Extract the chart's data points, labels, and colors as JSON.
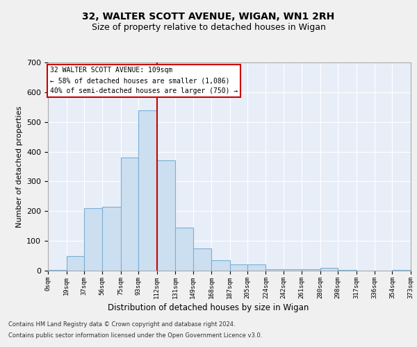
{
  "title_line1": "32, WALTER SCOTT AVENUE, WIGAN, WN1 2RH",
  "title_line2": "Size of property relative to detached houses in Wigan",
  "xlabel": "Distribution of detached houses by size in Wigan",
  "ylabel": "Number of detached properties",
  "property_label": "32 WALTER SCOTT AVENUE: 109sqm",
  "annotation_line2": "← 58% of detached houses are smaller (1,086)",
  "annotation_line3": "40% of semi-detached houses are larger (750) →",
  "footer_line1": "Contains HM Land Registry data © Crown copyright and database right 2024.",
  "footer_line2": "Contains public sector information licensed under the Open Government Licence v3.0.",
  "bin_edges": [
    0,
    19,
    37,
    56,
    75,
    93,
    112,
    131,
    149,
    168,
    187,
    205,
    224,
    242,
    261,
    280,
    298,
    317,
    336,
    354,
    373
  ],
  "bin_counts": [
    3,
    50,
    210,
    215,
    380,
    540,
    370,
    145,
    75,
    35,
    22,
    20,
    5,
    5,
    5,
    10,
    3,
    1,
    0,
    3
  ],
  "bar_color": "#ccdff0",
  "bar_edge_color": "#7bafd4",
  "vline_color": "#cc0000",
  "vline_x": 112,
  "box_color": "#cc0000",
  "ylim": [
    0,
    700
  ],
  "yticks": [
    0,
    100,
    200,
    300,
    400,
    500,
    600,
    700
  ],
  "tick_labels": [
    "0sqm",
    "19sqm",
    "37sqm",
    "56sqm",
    "75sqm",
    "93sqm",
    "112sqm",
    "131sqm",
    "149sqm",
    "168sqm",
    "187sqm",
    "205sqm",
    "224sqm",
    "242sqm",
    "261sqm",
    "280sqm",
    "298sqm",
    "317sqm",
    "336sqm",
    "354sqm",
    "373sqm"
  ],
  "bg_color": "#e8eef8",
  "fig_color": "#f0f0f0",
  "grid_color": "#ffffff",
  "title1_fontsize": 10,
  "title2_fontsize": 9
}
